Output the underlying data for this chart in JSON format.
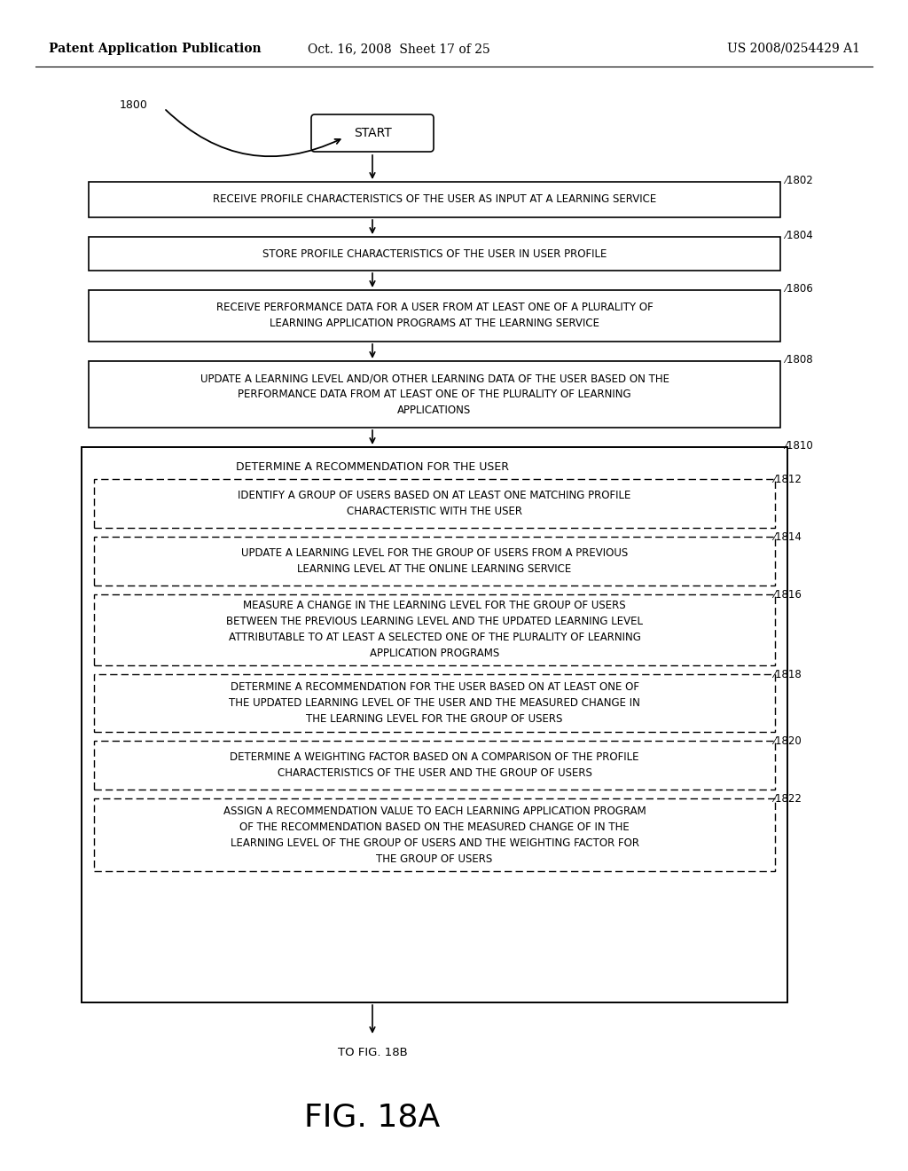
{
  "header_left": "Patent Application Publication",
  "header_mid": "Oct. 16, 2008  Sheet 17 of 25",
  "header_right": "US 2008/0254429 A1",
  "fig_label": "1800",
  "start_label": "START",
  "footer_label": "TO FIG. 18B",
  "fig_caption": "FIG. 18A",
  "bg_color": "#ffffff"
}
